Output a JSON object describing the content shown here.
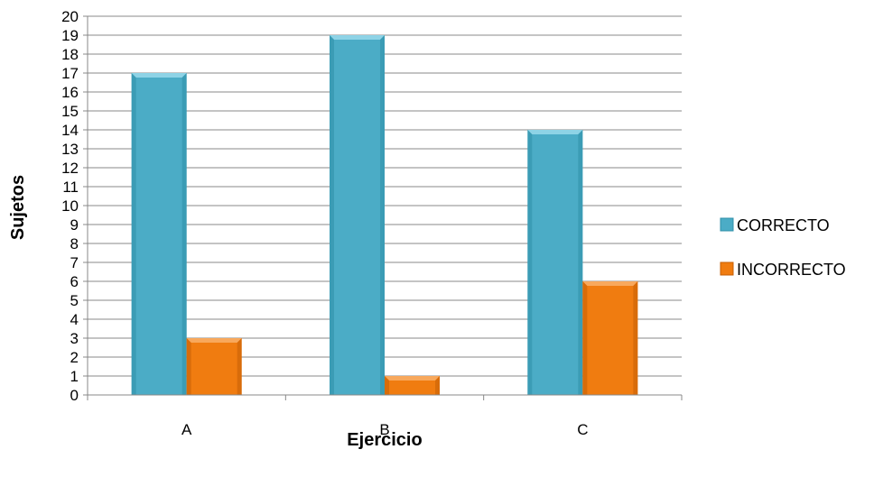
{
  "chart_data": {
    "type": "bar",
    "categories": [
      "A",
      "B",
      "C"
    ],
    "series": [
      {
        "name": "CORRECTO",
        "values": [
          17,
          19,
          14
        ],
        "color": "#4BACC6"
      },
      {
        "name": "INCORRECTO",
        "values": [
          3,
          1,
          6
        ],
        "color": "#F07C10"
      }
    ],
    "title": "",
    "xlabel": "Ejercicio",
    "ylabel": "Sujetos",
    "ylim": [
      0,
      20
    ],
    "yticks": [
      "0",
      "1",
      "2",
      "3",
      "4",
      "5",
      "6",
      "7",
      "8",
      "9",
      "10",
      "11",
      "12",
      "13",
      "14",
      "15",
      "16",
      "17",
      "18",
      "19",
      "20"
    ],
    "grid": true,
    "legend_position": "right"
  }
}
